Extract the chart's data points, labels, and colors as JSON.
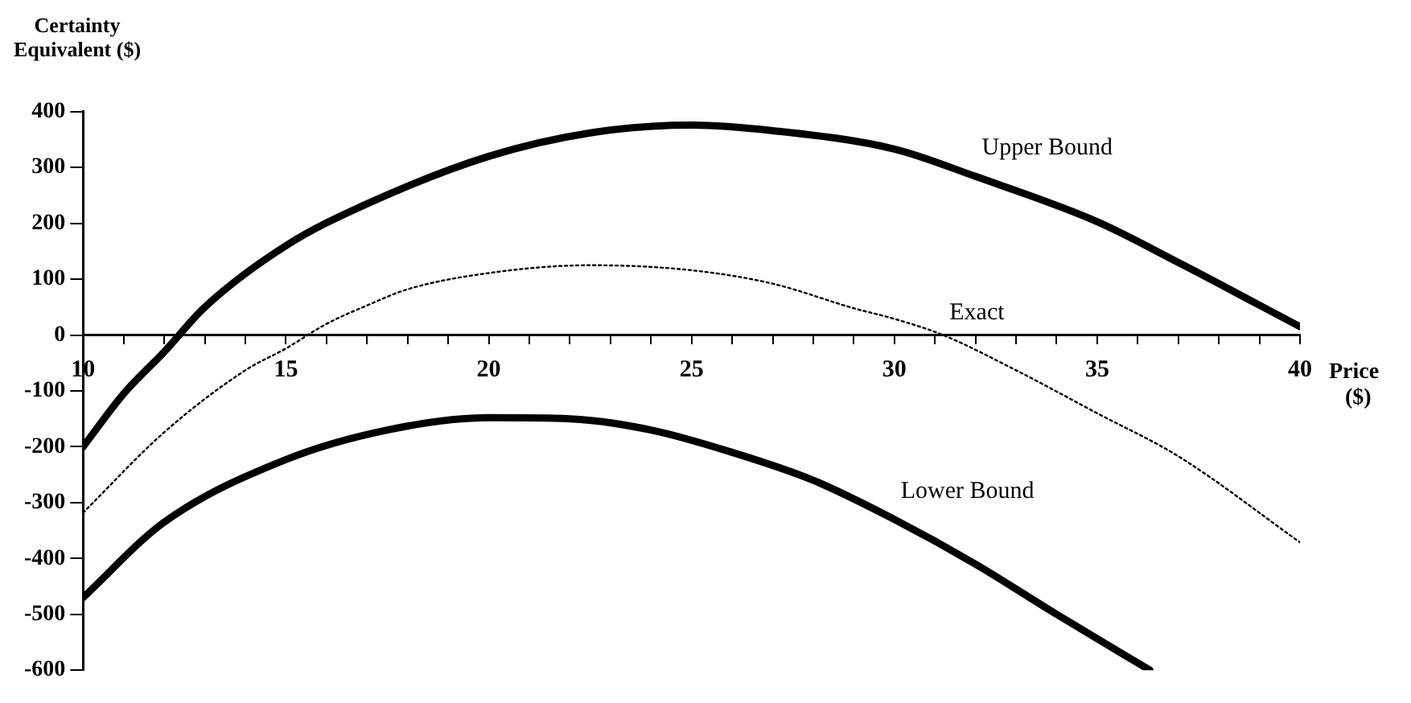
{
  "chart_data": {
    "type": "line",
    "ylabel": "Certainty Equivalent ($)",
    "xlabel": "Price ($)",
    "xlim": [
      10,
      40
    ],
    "ylim": [
      -600,
      400
    ],
    "xticks": [
      10,
      {
        "value": 11,
        "label": null
      },
      {
        "value": 12,
        "label": null
      },
      {
        "value": 13,
        "label": null
      },
      {
        "value": 14,
        "label": null
      },
      15,
      {
        "value": 16,
        "label": null
      },
      {
        "value": 17,
        "label": null
      },
      {
        "value": 18,
        "label": null
      },
      {
        "value": 19,
        "label": null
      },
      20,
      {
        "value": 21,
        "label": null
      },
      {
        "value": 22,
        "label": null
      },
      {
        "value": 23,
        "label": null
      },
      {
        "value": 24,
        "label": null
      },
      25,
      {
        "value": 26,
        "label": null
      },
      {
        "value": 27,
        "label": null
      },
      {
        "value": 28,
        "label": null
      },
      {
        "value": 29,
        "label": null
      },
      30,
      {
        "value": 31,
        "label": null
      },
      {
        "value": 32,
        "label": null
      },
      {
        "value": 33,
        "label": null
      },
      {
        "value": 34,
        "label": null
      },
      35,
      {
        "value": 36,
        "label": null
      },
      {
        "value": 37,
        "label": null
      },
      {
        "value": 38,
        "label": null
      },
      {
        "value": 39,
        "label": null
      },
      40
    ],
    "yticks": [
      -600,
      -500,
      -400,
      -300,
      -200,
      -100,
      0,
      100,
      200,
      300,
      400
    ],
    "grid": false,
    "legend": false,
    "marker": "none",
    "series": [
      {
        "name": "Upper Bound",
        "color": "#000000",
        "line_style": "solid",
        "x": [
          10,
          11,
          12,
          13,
          15,
          17,
          20,
          22.5,
          25,
          27,
          30,
          32,
          35,
          37,
          40
        ],
        "values": [
          -200,
          -105,
          -30,
          50,
          160,
          235,
          320,
          362,
          376,
          366,
          333,
          284,
          203,
          130,
          15
        ]
      },
      {
        "name": "Exact",
        "color": "#000000",
        "line_style": "dotted",
        "x": [
          10,
          12,
          14,
          15,
          16,
          17,
          18,
          20,
          22.5,
          25,
          27,
          29,
          30,
          31.2,
          33,
          35,
          37,
          40
        ],
        "values": [
          -318,
          -174,
          -63,
          -24,
          20,
          53,
          82,
          111,
          125,
          116,
          92,
          48,
          29,
          0,
          -63,
          -140,
          -217,
          -371
        ]
      },
      {
        "name": "Lower Bound",
        "color": "#000000",
        "line_style": "solid",
        "x": [
          10,
          12,
          15,
          17.5,
          20,
          22,
          24,
          26,
          28,
          30,
          32,
          34,
          36.3
        ],
        "values": [
          -470,
          -335,
          -223,
          -170,
          -148,
          -150,
          -170,
          -210,
          -260,
          -330,
          -410,
          -500,
          -600
        ]
      }
    ]
  }
}
